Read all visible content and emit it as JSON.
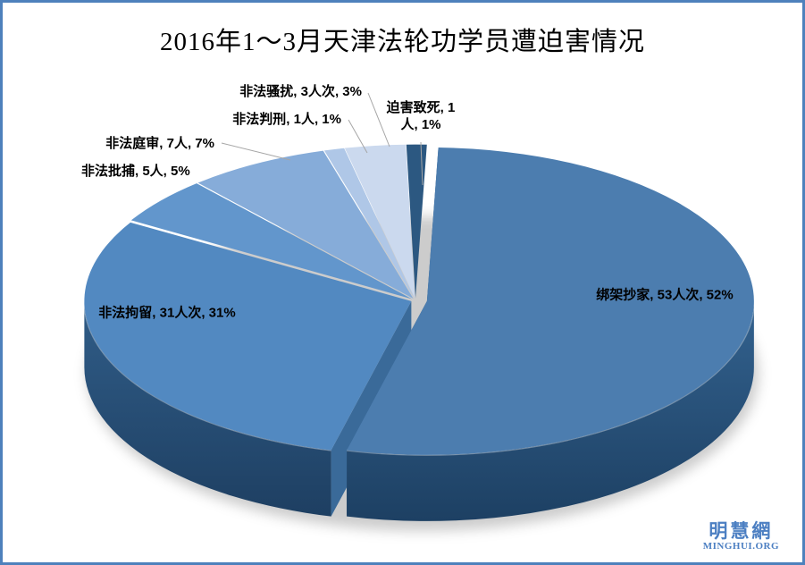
{
  "page": {
    "border_color": "#4E81BC",
    "background": "#FFFFFF"
  },
  "chart_data": {
    "type": "pie",
    "style": "3d-exploded",
    "title": "2016年1～3月天津法轮功学员遭迫害情况",
    "legend_position": "none",
    "label_format": "category, value, percent",
    "leader_line_color": "#A6A6A6",
    "start_angle_deg": 2,
    "slices": [
      {
        "name": "绑架抄家",
        "value": 53,
        "value_label": "53人次",
        "pct": 52,
        "display": "绑架抄家, 53人次, 52%",
        "color": "#4C7DAF",
        "wall_top": "#33628F",
        "wall_bottom": "#1D4063",
        "label_mode": "inside"
      },
      {
        "name": "非法拘留",
        "value": 31,
        "value_label": "31人次",
        "pct": 31,
        "display": "非法拘留, 31人次, 31%",
        "color": "#5289C1",
        "wall_top": "#305D88",
        "wall_bottom": "#1E3F62",
        "label_mode": "inside"
      },
      {
        "name": "非法批捕",
        "value": 5,
        "value_label": "5人",
        "pct": 5,
        "display": "非法批捕, 5人, 5%",
        "color": "#6296CC",
        "label_mode": "callout"
      },
      {
        "name": "非法庭审",
        "value": 7,
        "value_label": "7人",
        "pct": 7,
        "display": "非法庭审, 7人, 7%",
        "color": "#86ACD9",
        "label_mode": "callout",
        "leader": [
          245,
          157,
          322,
          176
        ]
      },
      {
        "name": "非法判刑",
        "value": 1,
        "value_label": "1人",
        "pct": 1,
        "display": "非法判刑, 1人, 1%",
        "color": "#AFC7E7",
        "label_mode": "callout",
        "leader": [
          387,
          131,
          408,
          168
        ]
      },
      {
        "name": "非法骚扰",
        "value": 3,
        "value_label": "3人次",
        "pct": 3,
        "display": "非法骚扰, 3人次, 3%",
        "color": "#CBD9EE",
        "label_mode": "callout",
        "leader": [
          409,
          101,
          433,
          161
        ]
      },
      {
        "name": "迫害致死",
        "value": 1,
        "value_label": "1人",
        "pct": 1,
        "display": "迫害致死, 1人, 1%",
        "display_line1": "迫害致死, 1",
        "display_line2": "人, 1%",
        "color": "#2C5881",
        "label_mode": "callout",
        "leader": [
          468,
          156,
          470,
          204
        ]
      }
    ]
  },
  "watermark": {
    "cn": "明慧網",
    "en": "MINGHUI.ORG",
    "color": "#4C7FC2"
  }
}
